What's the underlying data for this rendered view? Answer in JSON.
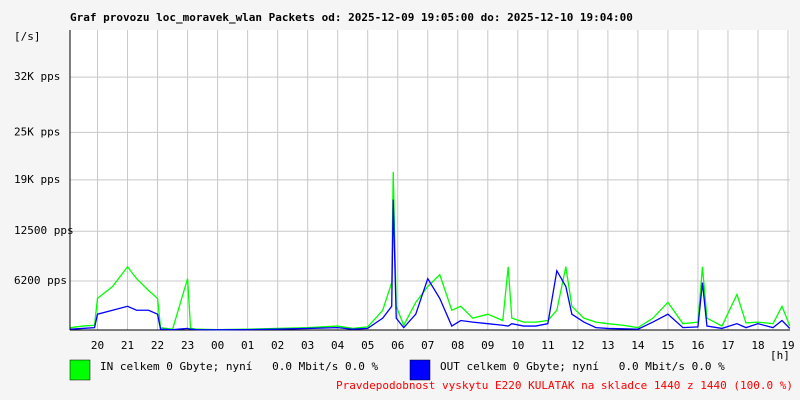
{
  "chart_data": {
    "type": "line",
    "title": "Graf provozu loc_moravek_wlan Packets od: 2025-12-09 19:05:00 do: 2025-12-10 19:04:00",
    "y_label": "[/s]",
    "x_label": "[h]",
    "footer": "Pravdepodobnost vyskytu E220 KULATAK na skladce 1440 z 1440 (100.0 %)",
    "grid": true,
    "xlim": [
      19.0833,
      43.0667
    ],
    "ylim": [
      0,
      37960
    ],
    "yticks": [
      {
        "value": 6200,
        "label": "6200 pps"
      },
      {
        "value": 12500,
        "label": "12500 pps"
      },
      {
        "value": 19000,
        "label": "19K pps"
      },
      {
        "value": 25000,
        "label": "25K pps"
      },
      {
        "value": 32000,
        "label": "32K pps"
      }
    ],
    "xticks": [
      20,
      21,
      22,
      23,
      {
        "value": 24,
        "label": "00"
      },
      {
        "value": 25,
        "label": "01"
      },
      {
        "value": 26,
        "label": "02"
      },
      {
        "value": 27,
        "label": "03"
      },
      {
        "value": 28,
        "label": "04"
      },
      {
        "value": 29,
        "label": "05"
      },
      {
        "value": 30,
        "label": "06"
      },
      {
        "value": 31,
        "label": "07"
      },
      {
        "value": 32,
        "label": "08"
      },
      {
        "value": 33,
        "label": "09"
      },
      {
        "value": 34,
        "label": "10"
      },
      {
        "value": 35,
        "label": "11"
      },
      {
        "value": 36,
        "label": "12"
      },
      {
        "value": 37,
        "label": "13"
      },
      {
        "value": 38,
        "label": "14"
      },
      {
        "value": 39,
        "label": "15"
      },
      {
        "value": 40,
        "label": "16"
      },
      {
        "value": 41,
        "label": "17"
      },
      {
        "value": 42,
        "label": "18"
      },
      {
        "value": 43,
        "label": "19"
      }
    ],
    "x": [
      19.1,
      19.5,
      19.9,
      20.0,
      20.5,
      21.0,
      21.3,
      21.7,
      22.0,
      22.1,
      22.5,
      23.0,
      23.1,
      23.3,
      24,
      25,
      26,
      27,
      28,
      28.5,
      29,
      29.5,
      29.8,
      29.85,
      29.95,
      30.2,
      30.6,
      31.0,
      31.4,
      31.8,
      32.1,
      32.5,
      33.0,
      33.5,
      33.68,
      33.8,
      34.2,
      34.6,
      35.0,
      35.3,
      35.6,
      35.8,
      36.2,
      36.6,
      37.0,
      37.5,
      38.0,
      38.5,
      39.0,
      39.5,
      40.0,
      40.15,
      40.3,
      40.8,
      41.3,
      41.6,
      42.0,
      42.5,
      42.8,
      43.06
    ],
    "series": [
      {
        "name": "IN celkem 0 Gbyte; nyní   0.0 Mbit/s 0.0 %",
        "color": "#00ff00",
        "values": [
          300,
          500,
          600,
          4000,
          5500,
          8000,
          6500,
          5000,
          4000,
          300,
          100,
          6500,
          200,
          100,
          50,
          100,
          200,
          300,
          500,
          200,
          400,
          2500,
          6000,
          20000,
          3000,
          600,
          3500,
          5500,
          7000,
          2500,
          3000,
          1500,
          2000,
          1200,
          8000,
          1500,
          1000,
          1000,
          1200,
          2500,
          8000,
          3000,
          1500,
          1000,
          800,
          600,
          300,
          1500,
          3500,
          800,
          1000,
          8000,
          1500,
          500,
          4500,
          900,
          1000,
          800,
          3000,
          500
        ]
      },
      {
        "name": "OUT celkem 0 Gbyte; nyní   0.0 Mbit/s 0.0 %",
        "color": "#0000ff",
        "values": [
          100,
          200,
          300,
          2000,
          2500,
          3000,
          2500,
          2500,
          2000,
          100,
          50,
          200,
          100,
          50,
          30,
          50,
          100,
          200,
          300,
          100,
          200,
          1500,
          3000,
          16500,
          1500,
          300,
          2000,
          6500,
          4000,
          500,
          1200,
          1000,
          800,
          600,
          500,
          800,
          500,
          500,
          800,
          7500,
          5500,
          2000,
          1000,
          300,
          200,
          150,
          100,
          1000,
          2000,
          300,
          400,
          6000,
          500,
          200,
          800,
          300,
          800,
          300,
          1200,
          200
        ]
      }
    ]
  }
}
